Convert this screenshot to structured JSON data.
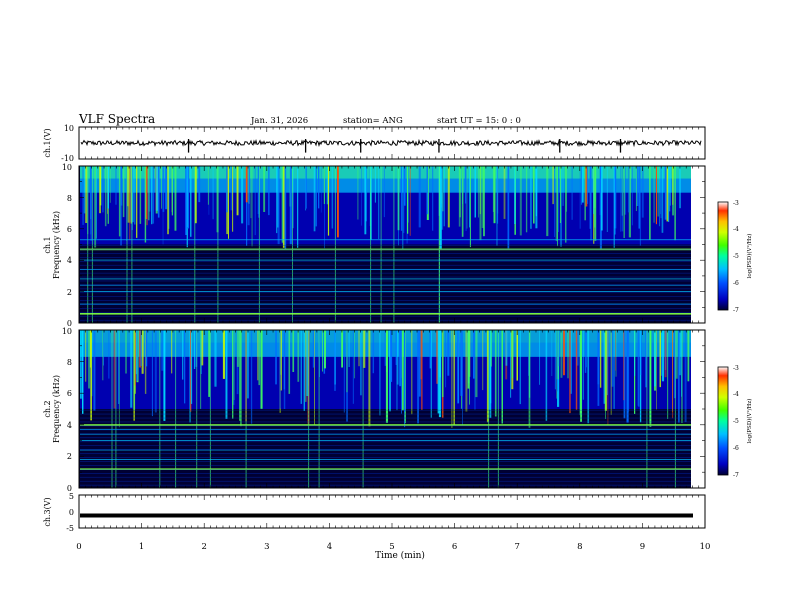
{
  "header": {
    "title": "VLF Spectra",
    "date": "Jan. 31, 2026",
    "station": "station= ANG",
    "start": "start  UT =  15: 0  : 0"
  },
  "colors": {
    "spectrum": [
      "#000033",
      "#0000a0",
      "#0000ff",
      "#0070ff",
      "#00d0ff",
      "#00ffa0",
      "#40ff00",
      "#c8ff00",
      "#ffd000",
      "#ff4000",
      "#ffffff"
    ]
  },
  "chart_data": [
    {
      "id": "ch1-waveform",
      "type": "line",
      "ylabel": "ch.1(V)",
      "ylim": [
        -10,
        10
      ],
      "yticks": [
        "10",
        "-10"
      ],
      "xlim": [
        0,
        10
      ],
      "baseline": 0,
      "noise_amplitude": 1.5,
      "spikes_min": [
        1.75,
        3.62,
        4.5,
        5.75,
        7.68,
        8.65
      ]
    },
    {
      "id": "ch1-spectrogram",
      "type": "heatmap",
      "ylabel": "ch.1",
      "ylabel2": "Frequency (kHz)",
      "ylim": [
        0,
        10
      ],
      "yticks": [
        "0",
        "2",
        "4",
        "6",
        "8",
        "10"
      ],
      "xlim": [
        0,
        10
      ],
      "colorbar": {
        "label": "log(PSD)(V²/Hz)",
        "range": [
          -7,
          -3
        ],
        "ticks": [
          "-3",
          "-4",
          "-5",
          "-6",
          "-7"
        ]
      },
      "lines_khz": [
        0.6,
        1.2,
        2.0,
        2.4,
        2.8,
        3.4,
        4.0,
        4.7,
        5.3
      ],
      "bright_lines_khz": [
        0.6,
        4.7
      ]
    },
    {
      "id": "ch2-spectrogram",
      "type": "heatmap",
      "ylabel": "ch.2",
      "ylabel2": "Frequency (kHz)",
      "ylim": [
        0,
        10
      ],
      "yticks": [
        "0",
        "2",
        "4",
        "6",
        "8",
        "10"
      ],
      "xlim": [
        0,
        10
      ],
      "colorbar": {
        "label": "log(PSD)(V²/Hz)",
        "range": [
          -7,
          -3
        ],
        "ticks": [
          "-3",
          "-4",
          "-5",
          "-6",
          "-7"
        ]
      },
      "lines_khz": [
        1.2,
        1.8,
        2.4,
        3.0,
        3.4,
        3.7,
        4.0
      ],
      "bright_lines_khz": [
        1.2,
        4.0
      ]
    },
    {
      "id": "ch3-waveform",
      "type": "line",
      "ylabel": "ch.3(V)",
      "ylim": [
        -5,
        5
      ],
      "yticks": [
        "5",
        "0",
        "-5"
      ],
      "xlim": [
        0,
        10
      ],
      "baseline": -1.2,
      "noise_amplitude": 0.2
    }
  ],
  "xaxis": {
    "label": "Time (min)",
    "ticks": [
      "0",
      "1",
      "2",
      "3",
      "4",
      "5",
      "6",
      "7",
      "8",
      "9",
      "10"
    ]
  }
}
